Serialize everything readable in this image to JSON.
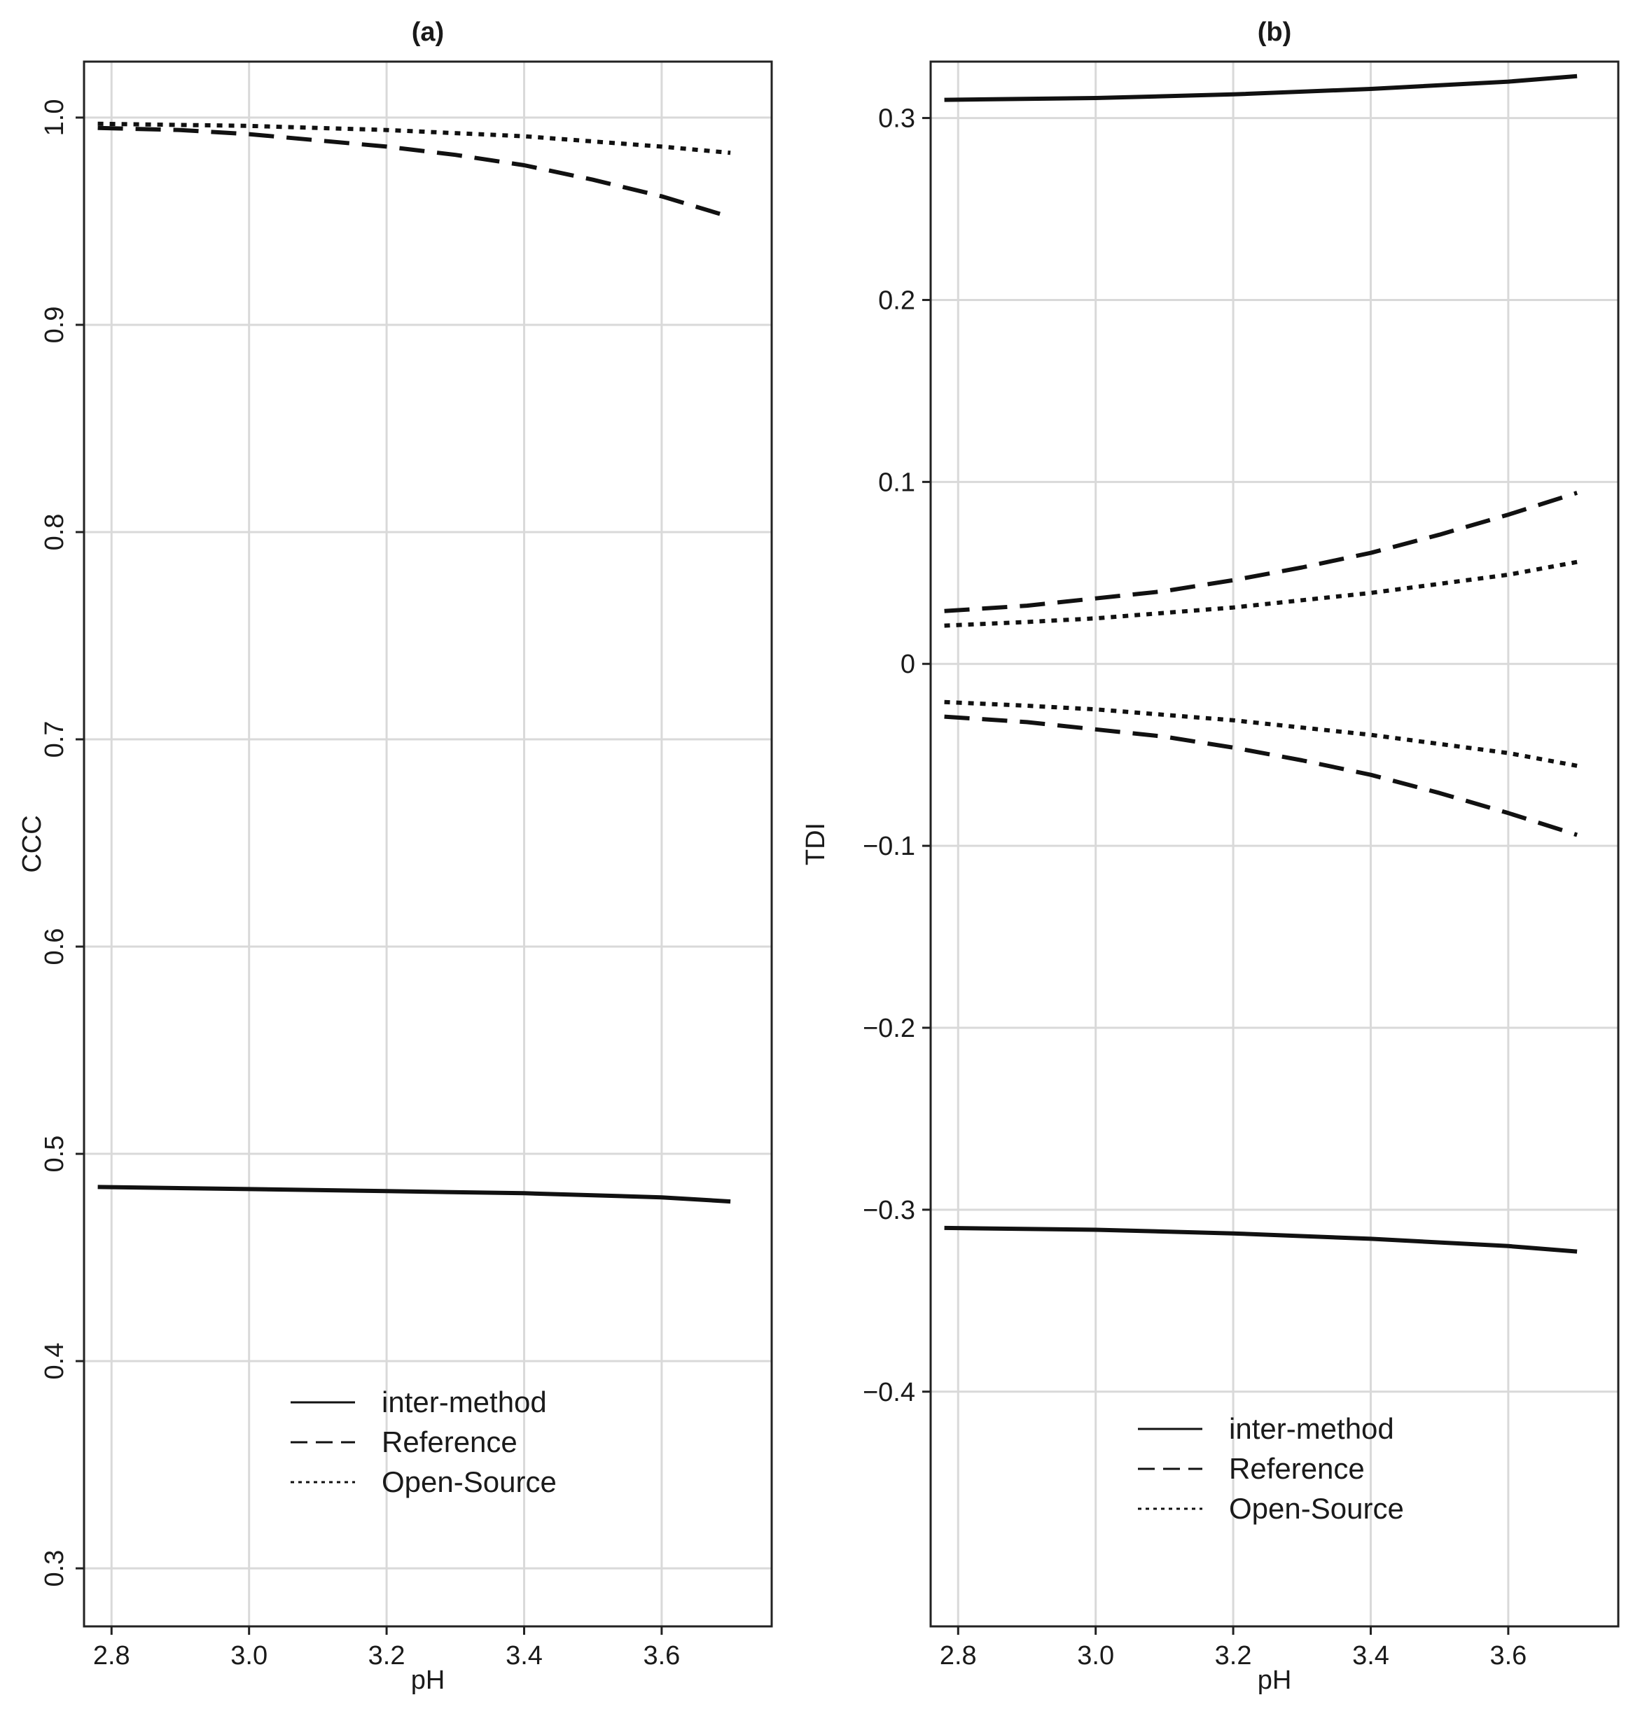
{
  "chart_data": [
    {
      "type": "line",
      "title": "(a)",
      "xlabel": "pH",
      "ylabel": "CCC",
      "xlim": [
        2.76,
        3.76
      ],
      "ylim": [
        0.272,
        1.027
      ],
      "xticks": [
        2.8,
        3.0,
        3.2,
        3.4,
        3.6
      ],
      "xtick_labels": [
        "2.8",
        "3.0",
        "3.2",
        "3.4",
        "3.6"
      ],
      "yticks": [
        0.3,
        0.4,
        0.5,
        0.6,
        0.7,
        0.8,
        0.9,
        1.0
      ],
      "ytick_labels": [
        "0.3",
        "0.4",
        "0.5",
        "0.6",
        "0.7",
        "0.8",
        "0.9",
        "1.0"
      ],
      "grid": true,
      "legend_position": "bottom-center",
      "series": [
        {
          "name": "inter-method",
          "style": "solid",
          "x": [
            2.78,
            3.0,
            3.2,
            3.4,
            3.6,
            3.7
          ],
          "y": [
            0.484,
            0.483,
            0.482,
            0.481,
            0.479,
            0.477
          ]
        },
        {
          "name": "Reference",
          "style": "dashed",
          "x": [
            2.78,
            2.9,
            3.0,
            3.1,
            3.2,
            3.3,
            3.4,
            3.5,
            3.6,
            3.7
          ],
          "y": [
            0.995,
            0.994,
            0.992,
            0.989,
            0.986,
            0.982,
            0.977,
            0.97,
            0.962,
            0.952
          ]
        },
        {
          "name": "Open-Source",
          "style": "dotted",
          "x": [
            2.78,
            3.0,
            3.2,
            3.4,
            3.6,
            3.7
          ],
          "y": [
            0.997,
            0.996,
            0.994,
            0.991,
            0.986,
            0.983
          ]
        }
      ]
    },
    {
      "type": "line",
      "title": "(b)",
      "xlabel": "pH",
      "ylabel": "TDI",
      "xlim": [
        2.76,
        3.76
      ],
      "ylim": [
        -0.529,
        0.331
      ],
      "xticks": [
        2.8,
        3.0,
        3.2,
        3.4,
        3.6
      ],
      "xtick_labels": [
        "2.8",
        "3.0",
        "3.2",
        "3.4",
        "3.6"
      ],
      "yticks": [
        -0.4,
        -0.3,
        -0.2,
        -0.1,
        0.0,
        0.1,
        0.2,
        0.3
      ],
      "ytick_labels": [
        "−0.4",
        "−0.3",
        "−0.2",
        "−0.1",
        "0",
        "0.1",
        "0.2",
        "0.3"
      ],
      "grid": true,
      "legend_position": "bottom-center",
      "series": [
        {
          "name": "inter-method",
          "style": "solid",
          "x": [
            2.78,
            3.0,
            3.2,
            3.4,
            3.6,
            3.7
          ],
          "y": [
            0.31,
            0.311,
            0.313,
            0.316,
            0.32,
            0.323
          ]
        },
        {
          "name": "inter-method lower",
          "legend": false,
          "style": "solid",
          "x": [
            2.78,
            3.0,
            3.2,
            3.4,
            3.6,
            3.7
          ],
          "y": [
            -0.31,
            -0.311,
            -0.313,
            -0.316,
            -0.32,
            -0.323
          ]
        },
        {
          "name": "Reference",
          "style": "dashed",
          "x": [
            2.78,
            2.9,
            3.0,
            3.1,
            3.2,
            3.3,
            3.4,
            3.5,
            3.6,
            3.7
          ],
          "y": [
            0.029,
            0.032,
            0.036,
            0.04,
            0.046,
            0.053,
            0.061,
            0.071,
            0.082,
            0.094
          ]
        },
        {
          "name": "Reference lower",
          "legend": false,
          "style": "dashed",
          "x": [
            2.78,
            2.9,
            3.0,
            3.1,
            3.2,
            3.3,
            3.4,
            3.5,
            3.6,
            3.7
          ],
          "y": [
            -0.029,
            -0.032,
            -0.036,
            -0.04,
            -0.046,
            -0.053,
            -0.061,
            -0.071,
            -0.082,
            -0.094
          ]
        },
        {
          "name": "Open-Source",
          "style": "dotted",
          "x": [
            2.78,
            2.9,
            3.0,
            3.1,
            3.2,
            3.3,
            3.4,
            3.5,
            3.6,
            3.7
          ],
          "y": [
            0.021,
            0.023,
            0.025,
            0.028,
            0.031,
            0.035,
            0.039,
            0.044,
            0.049,
            0.056
          ]
        },
        {
          "name": "Open-Source lower",
          "legend": false,
          "style": "dotted",
          "x": [
            2.78,
            2.9,
            3.0,
            3.1,
            3.2,
            3.3,
            3.4,
            3.5,
            3.6,
            3.7
          ],
          "y": [
            -0.021,
            -0.023,
            -0.025,
            -0.028,
            -0.031,
            -0.035,
            -0.039,
            -0.044,
            -0.049,
            -0.056
          ]
        }
      ]
    }
  ]
}
